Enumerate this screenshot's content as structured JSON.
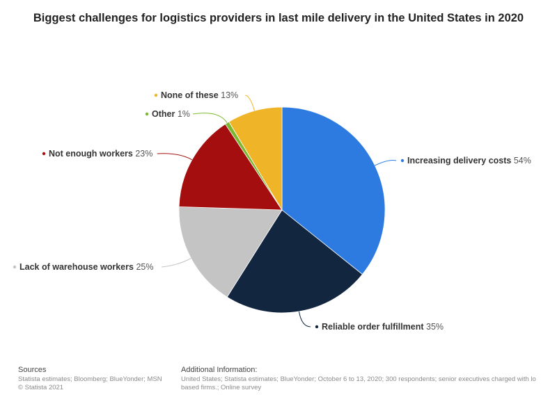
{
  "chart_data": {
    "type": "pie",
    "title": "Biggest challenges for logistics providers in last mile delivery in the United States in 2020",
    "slices": [
      {
        "label": "Increasing delivery costs",
        "value": 54,
        "value_label": "54%",
        "color": "#2d7be0"
      },
      {
        "label": "Reliable order fulfillment",
        "value": 35,
        "value_label": "35%",
        "color": "#122640"
      },
      {
        "label": "Lack of warehouse workers",
        "value": 25,
        "value_label": "25%",
        "color": "#c4c4c4"
      },
      {
        "label": "Not enough workers",
        "value": 23,
        "value_label": "23%",
        "color": "#a50e0e"
      },
      {
        "label": "Other",
        "value": 1,
        "value_label": "1%",
        "color": "#7cb82f"
      },
      {
        "label": "None of these",
        "value": 13,
        "value_label": "13%",
        "color": "#f0b428"
      }
    ],
    "legend": "none"
  },
  "footer": {
    "sources_heading": "Sources",
    "sources_line1": "Statista estimates; Bloomberg; BlueYonder; MSN",
    "sources_line2": "© Statista 2021",
    "additional_heading": "Additional Information:",
    "additional_line1": "United States; Statista estimates; BlueYonder; October 6 to 13, 2020; 300 respondents; senior executives charged with lo",
    "additional_line2": "based firms.; Online survey"
  }
}
